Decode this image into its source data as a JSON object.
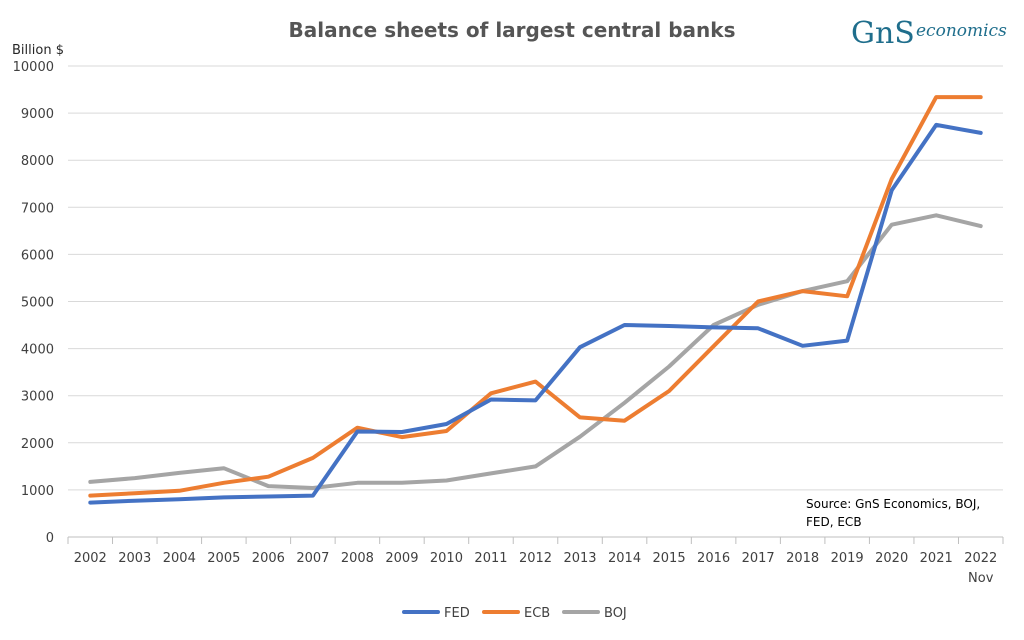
{
  "chart_data": {
    "type": "line",
    "title": "Balance sheets of largest central banks",
    "ylabel": "Billion $",
    "xlabel": "",
    "ylim": [
      0,
      10000
    ],
    "yticks": [
      "0",
      "1000",
      "2000",
      "3000",
      "4000",
      "5000",
      "6000",
      "7000",
      "8000",
      "9000",
      "10000"
    ],
    "categories": [
      "2002",
      "2003",
      "2004",
      "2005",
      "2006",
      "2007",
      "2008",
      "2009",
      "2010",
      "2011",
      "2012",
      "2013",
      "2014",
      "2015",
      "2016",
      "2017",
      "2018",
      "2019",
      "2020",
      "2021",
      "2022"
    ],
    "last_category_sublabel": "Nov",
    "series": [
      {
        "name": "FED",
        "color": "#4472c4",
        "values": [
          730,
          770,
          800,
          840,
          860,
          880,
          2240,
          2230,
          2400,
          2920,
          2900,
          4030,
          4500,
          4480,
          4450,
          4430,
          4060,
          4170,
          7360,
          8750,
          8580
        ]
      },
      {
        "name": "ECB",
        "color": "#ed7d31",
        "values": [
          880,
          930,
          980,
          1150,
          1280,
          1680,
          2320,
          2120,
          2250,
          3050,
          3300,
          2540,
          2470,
          3100,
          4050,
          5000,
          5220,
          5110,
          7600,
          9340,
          9340
        ]
      },
      {
        "name": "BOJ",
        "color": "#a5a5a5",
        "values": [
          1170,
          1250,
          1360,
          1460,
          1080,
          1040,
          1150,
          1150,
          1200,
          1350,
          1500,
          2130,
          2850,
          3620,
          4500,
          4930,
          5220,
          5430,
          6630,
          6830,
          6600
        ]
      }
    ],
    "legend_position": "bottom",
    "grid": true
  },
  "source_note": [
    "Source: GnS Economics, BOJ,",
    "FED, ECB"
  ],
  "logo": {
    "mark": "GnS",
    "word": "economics"
  }
}
